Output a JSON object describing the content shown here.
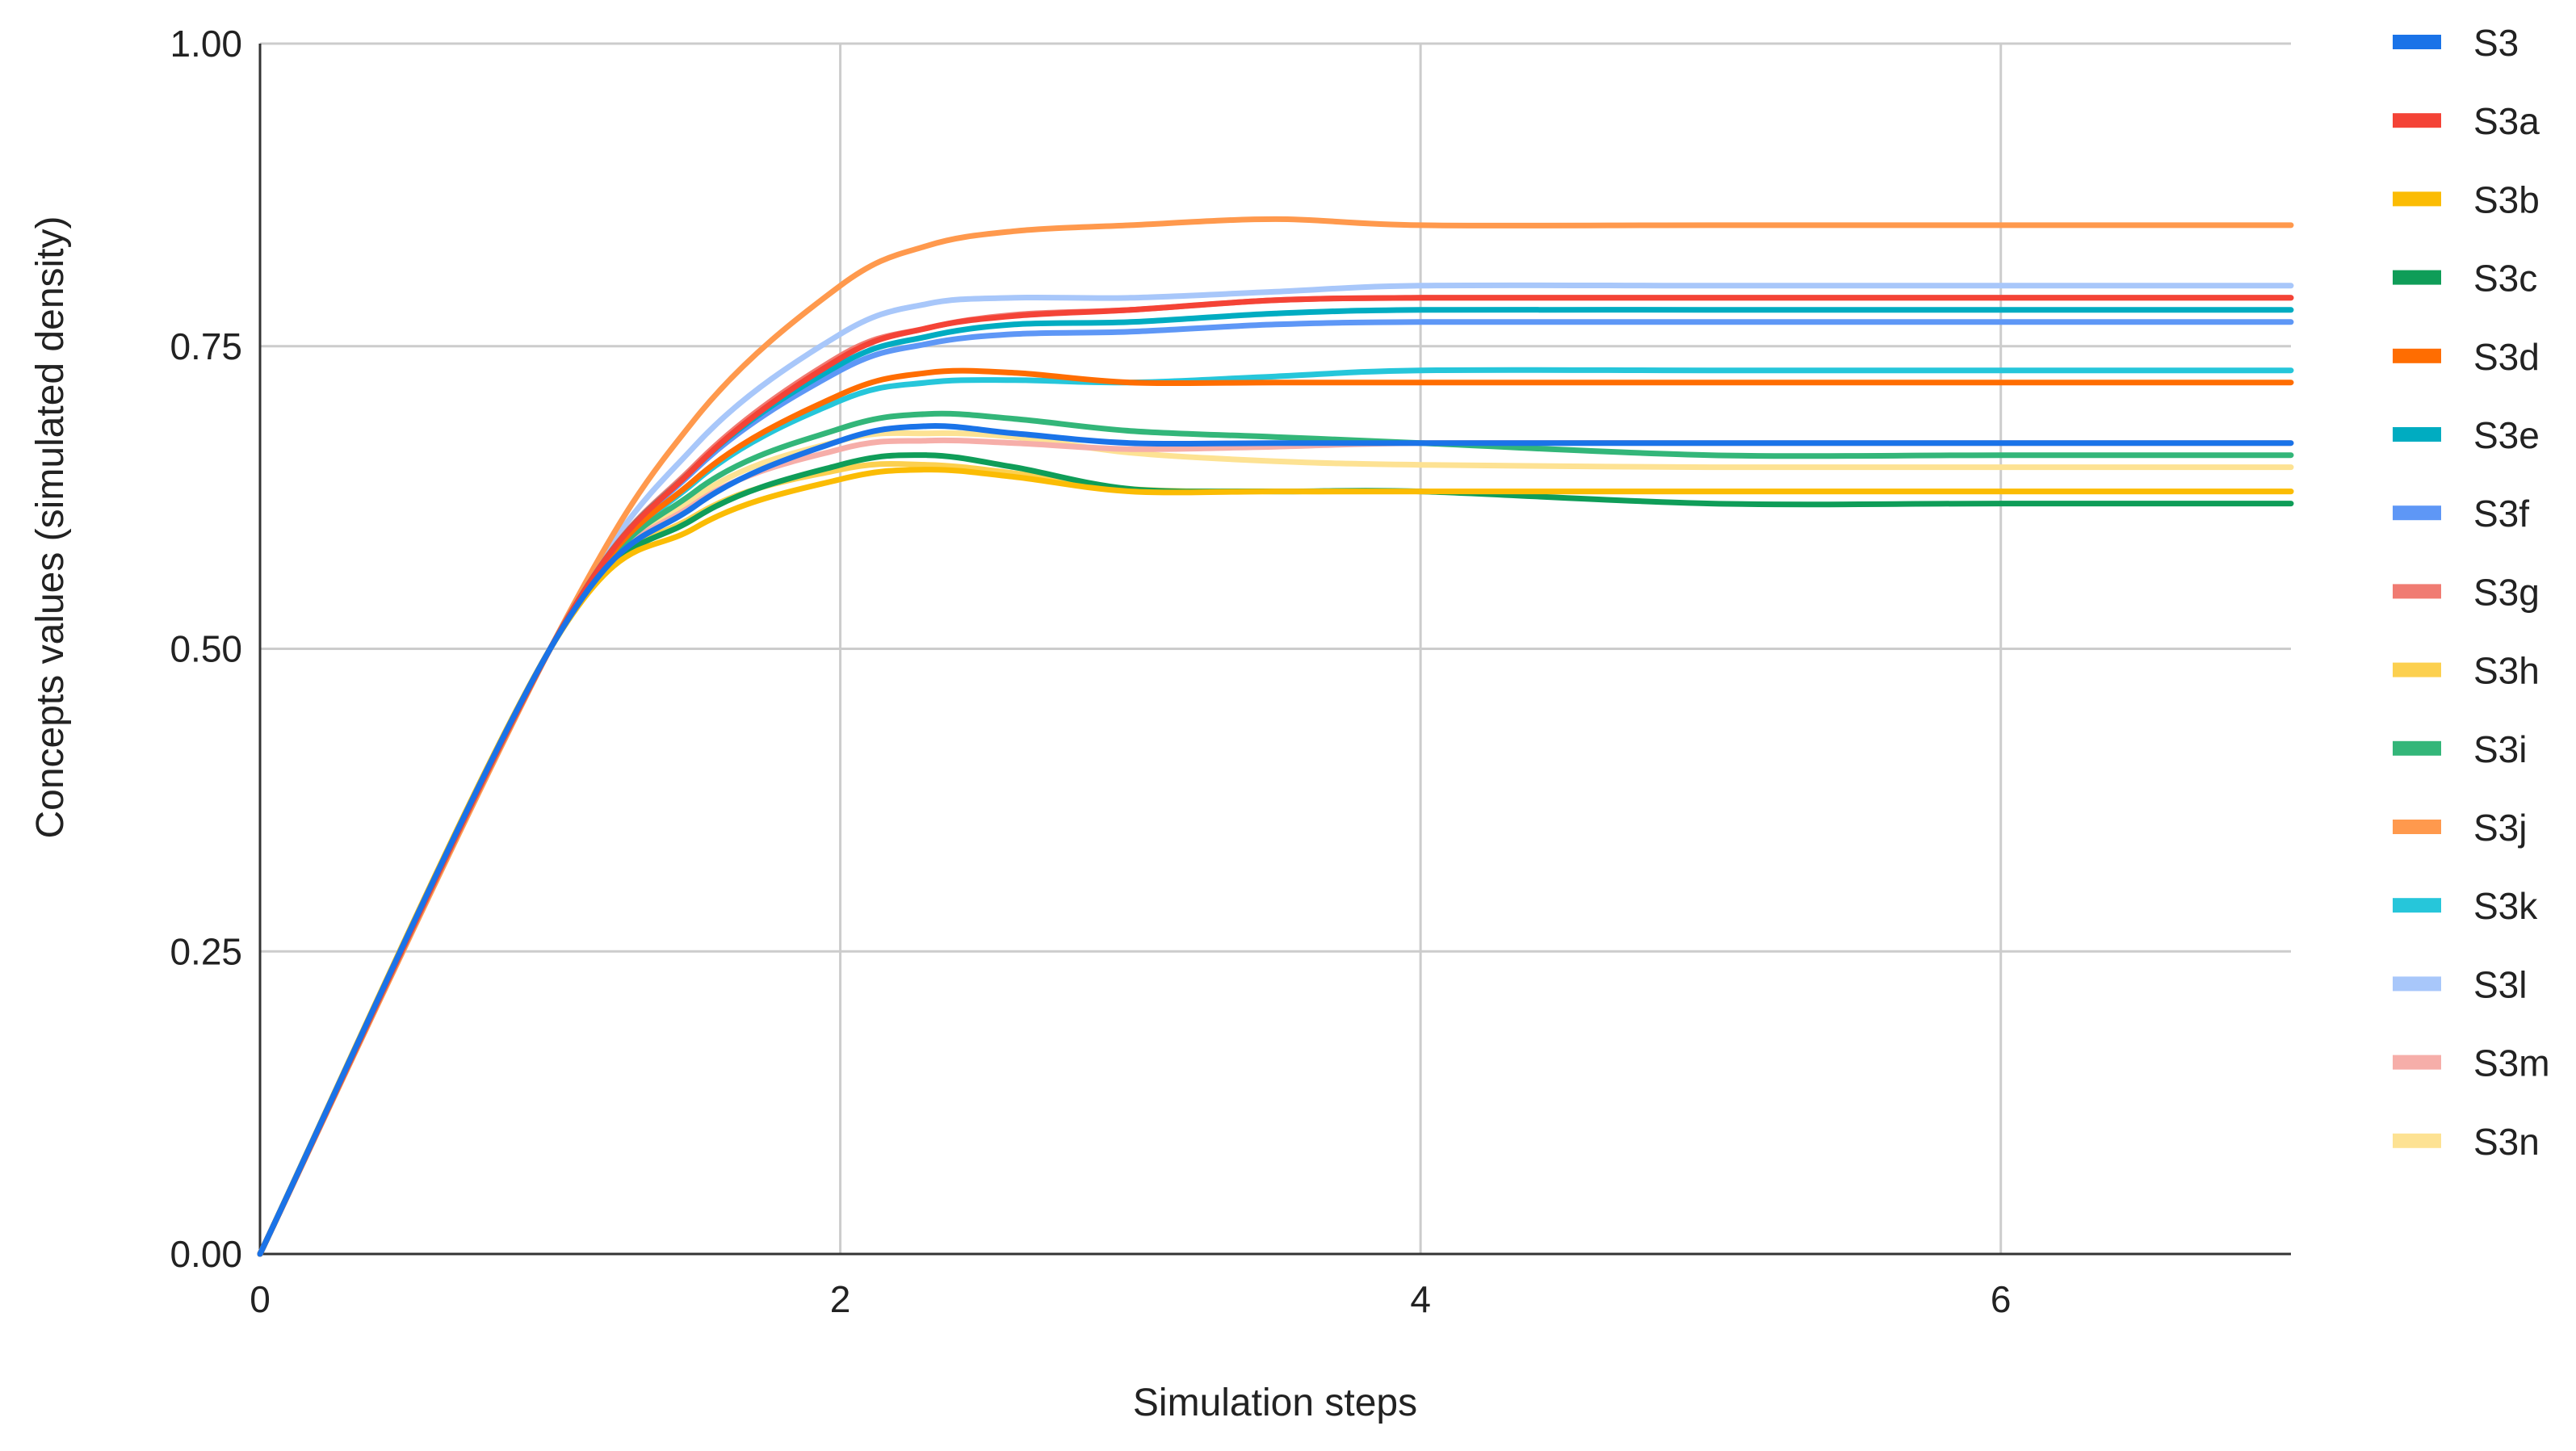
{
  "chart_data": {
    "type": "line",
    "title": "",
    "xlabel": "Simulation steps",
    "ylabel": "Concepts values (simulated density)",
    "xlim": [
      0,
      7
    ],
    "ylim": [
      0,
      1
    ],
    "xticks": [
      0,
      2,
      4,
      6
    ],
    "xtick_labels": [
      "0",
      "2",
      "4",
      "6"
    ],
    "yticks": [
      0,
      0.25,
      0.5,
      0.75,
      1
    ],
    "ytick_labels": [
      "0.00",
      "0.25",
      "0.50",
      "0.75",
      "1.00"
    ],
    "grid": true,
    "legend_position": "right",
    "x": [
      0,
      1,
      1.5,
      2,
      2.3,
      2.6,
      3,
      3.5,
      4,
      5,
      6,
      7
    ],
    "series": [
      {
        "name": "S3",
        "color": "#1a73e8",
        "values": [
          0,
          0.5,
          0.618,
          0.672,
          0.684,
          0.678,
          0.67,
          0.67,
          0.67,
          0.67,
          0.67,
          0.67
        ]
      },
      {
        "name": "S3a",
        "color": "#f44336",
        "values": [
          0,
          0.5,
          0.65,
          0.74,
          0.765,
          0.775,
          0.78,
          0.788,
          0.79,
          0.79,
          0.79,
          0.79
        ]
      },
      {
        "name": "S3b",
        "color": "#fbbc04",
        "values": [
          0,
          0.5,
          0.6,
          0.64,
          0.648,
          0.642,
          0.63,
          0.63,
          0.63,
          0.63,
          0.63,
          0.63
        ]
      },
      {
        "name": "S3c",
        "color": "#0f9d58",
        "values": [
          0,
          0.5,
          0.608,
          0.652,
          0.66,
          0.65,
          0.632,
          0.63,
          0.63,
          0.62,
          0.62,
          0.62
        ]
      },
      {
        "name": "S3d",
        "color": "#ff6d01",
        "values": [
          0,
          0.5,
          0.64,
          0.71,
          0.728,
          0.728,
          0.72,
          0.72,
          0.72,
          0.72,
          0.72,
          0.72
        ]
      },
      {
        "name": "S3e",
        "color": "#00acc1",
        "values": [
          0,
          0.5,
          0.65,
          0.735,
          0.758,
          0.768,
          0.77,
          0.777,
          0.78,
          0.78,
          0.78,
          0.78
        ]
      },
      {
        "name": "S3f",
        "color": "#5e97f6",
        "values": [
          0,
          0.5,
          0.648,
          0.73,
          0.752,
          0.76,
          0.762,
          0.768,
          0.77,
          0.77,
          0.77,
          0.77
        ]
      },
      {
        "name": "S3g",
        "color": "#f07b72",
        "values": [
          0,
          0.5,
          0.652,
          0.742,
          0.765,
          0.776,
          0.78,
          0.788,
          0.79,
          0.79,
          0.79,
          0.79
        ]
      },
      {
        "name": "S3h",
        "color": "#fcd04f",
        "values": [
          0,
          0.5,
          0.61,
          0.648,
          0.652,
          0.645,
          0.632,
          0.63,
          0.63,
          0.63,
          0.63,
          0.63
        ]
      },
      {
        "name": "S3i",
        "color": "#33b679",
        "values": [
          0,
          0.5,
          0.63,
          0.682,
          0.694,
          0.69,
          0.68,
          0.675,
          0.67,
          0.66,
          0.66,
          0.66
        ]
      },
      {
        "name": "S3j",
        "color": "#ff994d",
        "values": [
          0,
          0.5,
          0.69,
          0.8,
          0.833,
          0.845,
          0.85,
          0.855,
          0.85,
          0.85,
          0.85,
          0.85
        ]
      },
      {
        "name": "S3k",
        "color": "#26c6da",
        "values": [
          0,
          0.5,
          0.638,
          0.705,
          0.72,
          0.722,
          0.72,
          0.725,
          0.73,
          0.73,
          0.73,
          0.73
        ]
      },
      {
        "name": "S3l",
        "color": "#a8c7fa",
        "values": [
          0,
          0.5,
          0.668,
          0.76,
          0.785,
          0.79,
          0.79,
          0.795,
          0.8,
          0.8,
          0.8,
          0.8
        ]
      },
      {
        "name": "S3m",
        "color": "#f6aea9",
        "values": [
          0,
          0.5,
          0.62,
          0.665,
          0.672,
          0.67,
          0.665,
          0.667,
          0.67,
          0.67,
          0.67,
          0.67
        ]
      },
      {
        "name": "S3n",
        "color": "#fde293",
        "values": [
          0,
          0.5,
          0.625,
          0.672,
          0.678,
          0.675,
          0.662,
          0.655,
          0.652,
          0.65,
          0.65,
          0.65
        ]
      }
    ]
  }
}
